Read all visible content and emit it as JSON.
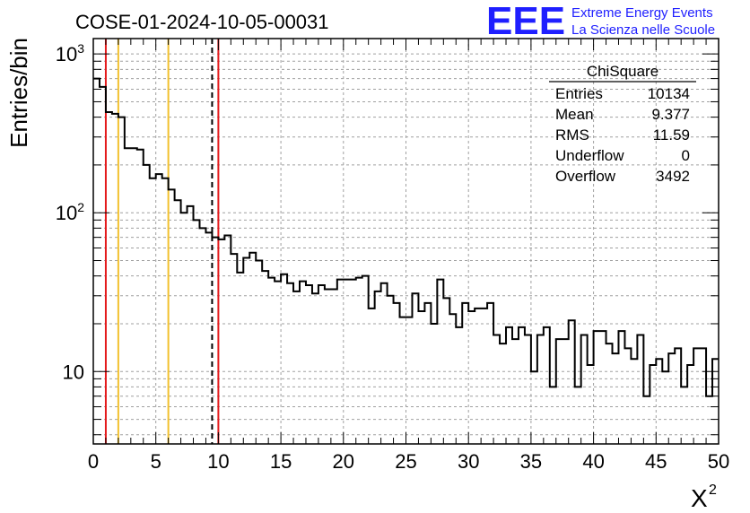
{
  "chart_data": {
    "type": "histogram",
    "title": "COSE-01-2024-10-05-00031",
    "xlabel": "X",
    "xlabel_sup": "2",
    "ylabel": "Entries/bin",
    "xlim": [
      0,
      50
    ],
    "ylim": [
      3.5,
      1250
    ],
    "yscale": "log",
    "grid": true,
    "bin_width": 0.5,
    "x_ticks": [
      0,
      5,
      10,
      15,
      20,
      25,
      30,
      35,
      40,
      45,
      50
    ],
    "y_major_ticks": [
      {
        "value": 10,
        "base": "10",
        "exp": ""
      },
      {
        "value": 100,
        "base": "10",
        "exp": "2"
      },
      {
        "value": 1000,
        "base": "10",
        "exp": "3"
      }
    ],
    "values": [
      700,
      620,
      430,
      420,
      400,
      255,
      255,
      250,
      200,
      165,
      175,
      165,
      140,
      120,
      100,
      110,
      90,
      80,
      75,
      70,
      68,
      72,
      55,
      42,
      52,
      56,
      50,
      43,
      39,
      37,
      41,
      36,
      32,
      37,
      35,
      31,
      35,
      33,
      33,
      38,
      38,
      38,
      39,
      40,
      25,
      32,
      36,
      30,
      27,
      22,
      22,
      31,
      24,
      27,
      20,
      38,
      29,
      23,
      19,
      27,
      24,
      25,
      25,
      27,
      17,
      15,
      19,
      16,
      19,
      17,
      10,
      17,
      19,
      8,
      16,
      16,
      21,
      8,
      17,
      11,
      18,
      18,
      15,
      13,
      18,
      14,
      12,
      17,
      7,
      11,
      12,
      10,
      13,
      14,
      8,
      11,
      14,
      14,
      7,
      12
    ],
    "vertical_lines": [
      {
        "x": 1,
        "style": "solid",
        "color": "#e41a1c"
      },
      {
        "x": 2,
        "style": "solid",
        "color": "#f2c12e"
      },
      {
        "x": 6,
        "style": "solid",
        "color": "#f2c12e"
      },
      {
        "x": 9.5,
        "style": "dashed",
        "color": "#000000"
      },
      {
        "x": 10,
        "style": "solid",
        "color": "#e41a1c"
      }
    ],
    "stats": {
      "name": "ChiSquare",
      "rows": [
        {
          "label": "Entries",
          "value": "10134"
        },
        {
          "label": "Mean",
          "value": "9.377"
        },
        {
          "label": "RMS",
          "value": "11.59"
        },
        {
          "label": "Underflow",
          "value": "0"
        },
        {
          "label": "Overflow",
          "value": "3492"
        }
      ]
    }
  },
  "logo": {
    "mark": "EEE",
    "line1": "Extreme Energy Events",
    "line2": "La Scienza nelle Scuole"
  },
  "colors": {
    "histogram": "#000000",
    "grid": "#a0a0a0",
    "logo": "#1f1fff"
  }
}
